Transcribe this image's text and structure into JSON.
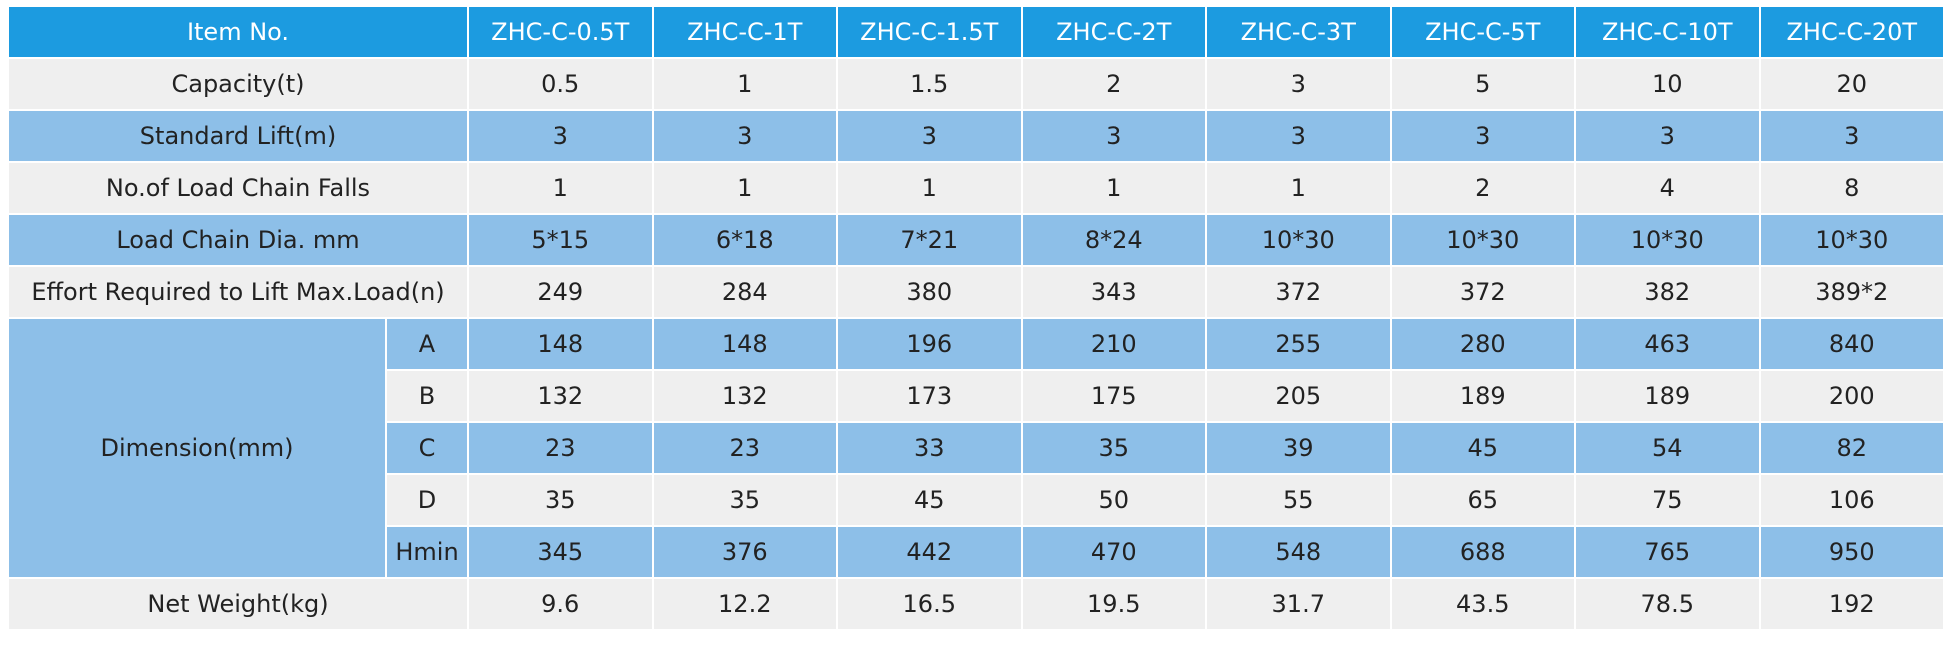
{
  "table": {
    "header": [
      "Item No.",
      "ZHC-C-0.5T",
      "ZHC-C-1T",
      "ZHC-C-1.5T",
      "ZHC-C-2T",
      "ZHC-C-3T",
      "ZHC-C-5T",
      "ZHC-C-10T",
      "ZHC-C-20T"
    ],
    "rows": [
      {
        "label": "Capacity(t)",
        "values": [
          "0.5",
          "1",
          "1.5",
          "2",
          "3",
          "5",
          "10",
          "20"
        ]
      },
      {
        "label": "Standard Lift(m)",
        "values": [
          "3",
          "3",
          "3",
          "3",
          "3",
          "3",
          "3",
          "3"
        ]
      },
      {
        "label": "No.of Load Chain Falls",
        "values": [
          "1",
          "1",
          "1",
          "1",
          "1",
          "2",
          "4",
          "8"
        ]
      },
      {
        "label": "Load Chain Dia. mm",
        "values": [
          "5*15",
          "6*18",
          "7*21",
          "8*24",
          "10*30",
          "10*30",
          "10*30",
          "10*30"
        ]
      },
      {
        "label": "Effort Required to Lift Max.Load(n)",
        "values": [
          "249",
          "284",
          "380",
          "343",
          "372",
          "372",
          "382",
          "389*2"
        ]
      },
      {
        "label": "Dimension(mm)",
        "subrows": [
          {
            "label": "A",
            "values": [
              "148",
              "148",
              "196",
              "210",
              "255",
              "280",
              "463",
              "840"
            ]
          },
          {
            "label": "B",
            "values": [
              "132",
              "132",
              "173",
              "175",
              "205",
              "189",
              "189",
              "200"
            ]
          },
          {
            "label": "C",
            "values": [
              "23",
              "23",
              "33",
              "35",
              "39",
              "45",
              "54",
              "82"
            ]
          },
          {
            "label": "D",
            "values": [
              "35",
              "35",
              "45",
              "50",
              "55",
              "65",
              "75",
              "106"
            ]
          },
          {
            "label": "Hmin",
            "values": [
              "345",
              "376",
              "442",
              "470",
              "548",
              "688",
              "765",
              "950"
            ]
          }
        ]
      },
      {
        "label": "Net Weight(kg)",
        "values": [
          "9.6",
          "12.2",
          "16.5",
          "19.5",
          "31.7",
          "43.5",
          "78.5",
          "192"
        ]
      }
    ]
  }
}
